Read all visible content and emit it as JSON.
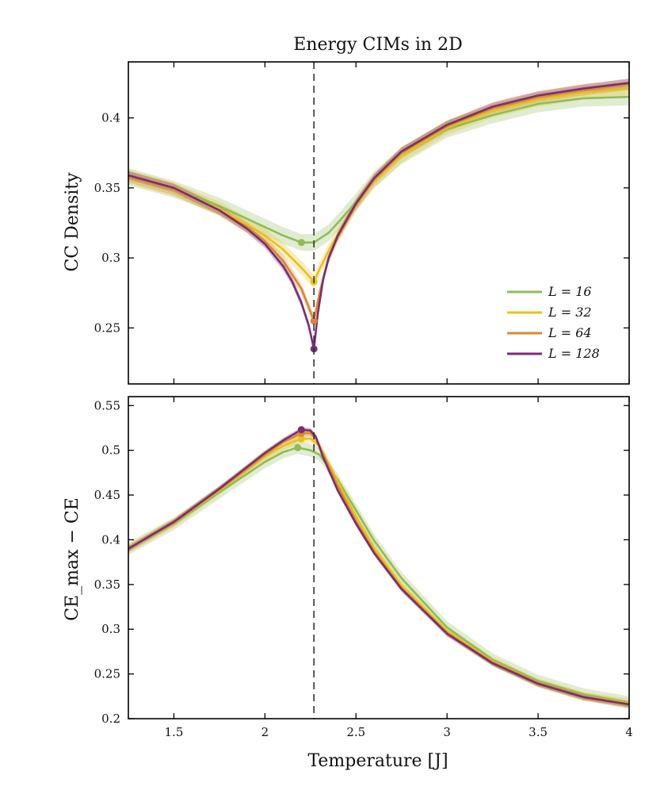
{
  "chart_data": [
    {
      "type": "line",
      "title": "Energy CIMs in 2D",
      "ylabel": "CC Density",
      "xlabel": "",
      "xlim": [
        1.25,
        4.0
      ],
      "ylim": [
        0.21,
        0.44
      ],
      "xticks": [
        1.5,
        2,
        2.5,
        3,
        3.5,
        4
      ],
      "xtick_labels": [
        "",
        "",
        "",
        "",
        "",
        ""
      ],
      "yticks": [
        0.25,
        0.3,
        0.35,
        0.4
      ],
      "ytick_labels": [
        "0.25",
        "0.3",
        "0.35",
        "0.4"
      ],
      "critical_temperature": 2.269,
      "legend": {
        "position": "lower-right"
      },
      "series": [
        {
          "name": "L = 16",
          "color": "#8fbc5a",
          "band": 0.006,
          "marker": [
            2.2,
            0.311
          ],
          "x": [
            1.25,
            1.5,
            1.75,
            1.9,
            2.0,
            2.1,
            2.2,
            2.269,
            2.35,
            2.4,
            2.5,
            2.6,
            2.75,
            3.0,
            3.25,
            3.5,
            3.75,
            4.0
          ],
          "y": [
            0.358,
            0.349,
            0.337,
            0.328,
            0.322,
            0.316,
            0.311,
            0.311,
            0.318,
            0.325,
            0.34,
            0.356,
            0.373,
            0.392,
            0.402,
            0.41,
            0.414,
            0.415
          ]
        },
        {
          "name": "L = 32",
          "color": "#e8c21a",
          "band": 0.005,
          "marker": [
            2.269,
            0.283
          ],
          "x": [
            1.25,
            1.5,
            1.75,
            1.9,
            2.0,
            2.1,
            2.2,
            2.269,
            2.3,
            2.35,
            2.4,
            2.5,
            2.6,
            2.75,
            3.0,
            3.25,
            3.5,
            3.75,
            4.0
          ],
          "y": [
            0.358,
            0.349,
            0.335,
            0.324,
            0.316,
            0.306,
            0.293,
            0.283,
            0.292,
            0.305,
            0.317,
            0.338,
            0.355,
            0.373,
            0.393,
            0.405,
            0.413,
            0.418,
            0.421
          ]
        },
        {
          "name": "L = 64",
          "color": "#d98a2e",
          "band": 0.004,
          "marker": [
            2.269,
            0.255
          ],
          "x": [
            1.25,
            1.5,
            1.75,
            1.9,
            2.0,
            2.1,
            2.2,
            2.24,
            2.269,
            2.3,
            2.35,
            2.4,
            2.5,
            2.6,
            2.75,
            3.0,
            3.25,
            3.5,
            3.75,
            4.0
          ],
          "y": [
            0.358,
            0.349,
            0.334,
            0.322,
            0.312,
            0.298,
            0.278,
            0.265,
            0.255,
            0.275,
            0.3,
            0.315,
            0.338,
            0.356,
            0.375,
            0.394,
            0.407,
            0.415,
            0.42,
            0.424
          ]
        },
        {
          "name": "L = 128",
          "color": "#7b2d73",
          "band": 0.003,
          "marker": [
            2.269,
            0.235
          ],
          "x": [
            1.25,
            1.5,
            1.75,
            1.9,
            2.0,
            2.1,
            2.15,
            2.2,
            2.24,
            2.269,
            2.29,
            2.32,
            2.35,
            2.4,
            2.5,
            2.6,
            2.75,
            3.0,
            3.25,
            3.5,
            3.75,
            4.0
          ],
          "y": [
            0.359,
            0.35,
            0.334,
            0.321,
            0.31,
            0.294,
            0.283,
            0.268,
            0.252,
            0.235,
            0.26,
            0.285,
            0.3,
            0.316,
            0.339,
            0.357,
            0.376,
            0.395,
            0.408,
            0.416,
            0.421,
            0.425
          ]
        }
      ]
    },
    {
      "type": "line",
      "title": "",
      "ylabel": "CE_max − CE",
      "xlabel": "Temperature [J]",
      "xlim": [
        1.25,
        4.0
      ],
      "ylim": [
        0.2,
        0.56
      ],
      "xticks": [
        1.5,
        2,
        2.5,
        3,
        3.5,
        4
      ],
      "xtick_labels": [
        "1.5",
        "2",
        "2.5",
        "3",
        "3.5",
        "4"
      ],
      "yticks": [
        0.2,
        0.25,
        0.3,
        0.35,
        0.4,
        0.45,
        0.5,
        0.55
      ],
      "ytick_labels": [
        "0.2",
        "0.25",
        "0.3",
        "0.35",
        "0.4",
        "0.45",
        "0.5",
        "0.55"
      ],
      "critical_temperature": 2.269,
      "series": [
        {
          "name": "L = 16",
          "color": "#8fbc5a",
          "band": 0.007,
          "marker": [
            2.18,
            0.503
          ],
          "x": [
            1.25,
            1.5,
            1.75,
            2.0,
            2.1,
            2.18,
            2.25,
            2.3,
            2.4,
            2.5,
            2.6,
            2.75,
            3.0,
            3.25,
            3.5,
            3.75,
            4.0
          ],
          "y": [
            0.39,
            0.418,
            0.453,
            0.487,
            0.498,
            0.503,
            0.5,
            0.495,
            0.467,
            0.433,
            0.399,
            0.357,
            0.302,
            0.266,
            0.242,
            0.227,
            0.218
          ]
        },
        {
          "name": "L = 32",
          "color": "#e8c21a",
          "band": 0.005,
          "marker": [
            2.2,
            0.513
          ],
          "x": [
            1.25,
            1.5,
            1.75,
            2.0,
            2.1,
            2.2,
            2.25,
            2.3,
            2.4,
            2.5,
            2.6,
            2.75,
            3.0,
            3.25,
            3.5,
            3.75,
            4.0
          ],
          "y": [
            0.39,
            0.419,
            0.455,
            0.493,
            0.505,
            0.513,
            0.513,
            0.505,
            0.465,
            0.426,
            0.391,
            0.349,
            0.298,
            0.264,
            0.24,
            0.225,
            0.217
          ]
        },
        {
          "name": "L = 64",
          "color": "#d98a2e",
          "band": 0.004,
          "marker": [
            2.2,
            0.519
          ],
          "x": [
            1.25,
            1.5,
            1.75,
            2.0,
            2.1,
            2.2,
            2.25,
            2.28,
            2.35,
            2.4,
            2.5,
            2.6,
            2.75,
            3.0,
            3.25,
            3.5,
            3.75,
            4.0
          ],
          "y": [
            0.39,
            0.419,
            0.456,
            0.495,
            0.509,
            0.519,
            0.519,
            0.513,
            0.482,
            0.46,
            0.421,
            0.387,
            0.346,
            0.296,
            0.263,
            0.24,
            0.225,
            0.216
          ]
        },
        {
          "name": "L = 128",
          "color": "#7b2d73",
          "band": 0.003,
          "marker": [
            2.2,
            0.523
          ],
          "x": [
            1.25,
            1.5,
            1.75,
            2.0,
            2.1,
            2.2,
            2.25,
            2.28,
            2.32,
            2.4,
            2.5,
            2.6,
            2.75,
            3.0,
            3.25,
            3.5,
            3.75,
            4.0
          ],
          "y": [
            0.39,
            0.42,
            0.457,
            0.497,
            0.511,
            0.523,
            0.522,
            0.515,
            0.492,
            0.455,
            0.418,
            0.385,
            0.345,
            0.295,
            0.262,
            0.239,
            0.224,
            0.216
          ]
        }
      ]
    }
  ]
}
